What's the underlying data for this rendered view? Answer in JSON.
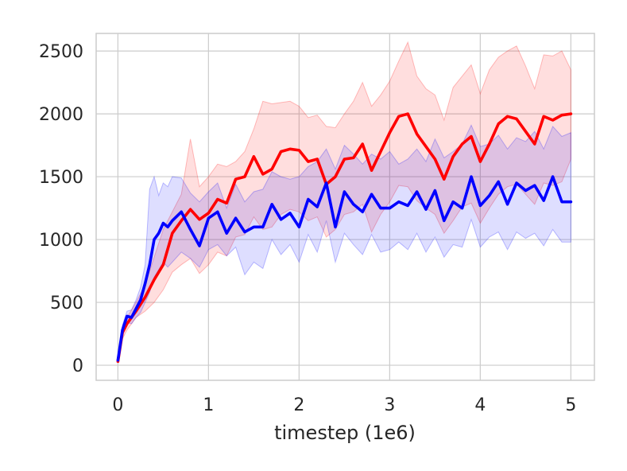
{
  "chart_data": {
    "type": "line",
    "title": "",
    "xlabel": "timestep (1e6)",
    "ylabel": "",
    "xlim": [
      -0.24,
      5.26
    ],
    "ylim": [
      -120,
      2640
    ],
    "x_ticks": [
      0,
      1,
      2,
      3,
      4,
      5
    ],
    "y_ticks": [
      0,
      500,
      1000,
      1500,
      2000,
      2500
    ],
    "grid": true,
    "legend": "none",
    "series": [
      {
        "color": "#ff0000",
        "band_color": "#ff0000",
        "x": [
          0,
          0.05,
          0.1,
          0.2,
          0.3,
          0.4,
          0.5,
          0.6,
          0.7,
          0.8,
          0.9,
          1.0,
          1.1,
          1.2,
          1.3,
          1.4,
          1.5,
          1.6,
          1.7,
          1.8,
          1.9,
          2.0,
          2.1,
          2.2,
          2.3,
          2.4,
          2.5,
          2.6,
          2.7,
          2.8,
          2.9,
          3.0,
          3.1,
          3.2,
          3.3,
          3.4,
          3.5,
          3.6,
          3.7,
          3.8,
          3.9,
          4.0,
          4.1,
          4.2,
          4.3,
          4.4,
          4.5,
          4.6,
          4.7,
          4.8,
          4.9,
          5.0
        ],
        "mean": [
          30,
          260,
          330,
          430,
          540,
          680,
          800,
          1050,
          1150,
          1240,
          1160,
          1210,
          1320,
          1290,
          1480,
          1500,
          1660,
          1520,
          1560,
          1700,
          1720,
          1710,
          1620,
          1640,
          1440,
          1500,
          1640,
          1650,
          1760,
          1550,
          1700,
          1850,
          1980,
          2000,
          1840,
          1740,
          1640,
          1480,
          1660,
          1760,
          1820,
          1620,
          1760,
          1920,
          1980,
          1960,
          1860,
          1760,
          1980,
          1950,
          1990,
          2000
        ],
        "upper": [
          60,
          300,
          380,
          500,
          640,
          860,
          1080,
          1220,
          1360,
          1800,
          1420,
          1500,
          1600,
          1580,
          1620,
          1700,
          1880,
          2100,
          2080,
          2090,
          2100,
          2060,
          1970,
          1990,
          1900,
          1890,
          2000,
          2100,
          2250,
          2060,
          2150,
          2260,
          2420,
          2570,
          2300,
          2200,
          2150,
          1950,
          2210,
          2300,
          2390,
          2160,
          2350,
          2450,
          2500,
          2540,
          2380,
          2200,
          2470,
          2460,
          2500,
          2350
        ],
        "lower": [
          20,
          210,
          280,
          380,
          430,
          500,
          600,
          740,
          800,
          850,
          730,
          800,
          900,
          870,
          1020,
          1040,
          1180,
          1080,
          1100,
          1200,
          1240,
          1220,
          1150,
          1180,
          1020,
          1080,
          1200,
          1220,
          1280,
          1060,
          1200,
          1300,
          1430,
          1420,
          1310,
          1250,
          1200,
          1050,
          1150,
          1260,
          1290,
          1130,
          1250,
          1360,
          1420,
          1440,
          1360,
          1280,
          1450,
          1430,
          1460,
          1640
        ]
      },
      {
        "color": "#0000ff",
        "band_color": "#0000ff",
        "x": [
          0,
          0.05,
          0.1,
          0.15,
          0.2,
          0.25,
          0.3,
          0.35,
          0.4,
          0.45,
          0.5,
          0.55,
          0.6,
          0.7,
          0.8,
          0.9,
          1.0,
          1.1,
          1.2,
          1.3,
          1.4,
          1.5,
          1.6,
          1.7,
          1.8,
          1.9,
          2.0,
          2.1,
          2.2,
          2.3,
          2.4,
          2.5,
          2.6,
          2.7,
          2.8,
          2.9,
          3.0,
          3.1,
          3.2,
          3.3,
          3.4,
          3.5,
          3.6,
          3.7,
          3.8,
          3.9,
          4.0,
          4.1,
          4.2,
          4.3,
          4.4,
          4.5,
          4.6,
          4.7,
          4.8,
          4.9,
          5.0
        ],
        "mean": [
          40,
          280,
          390,
          380,
          450,
          520,
          650,
          800,
          1000,
          1050,
          1130,
          1100,
          1150,
          1220,
          1080,
          950,
          1170,
          1220,
          1050,
          1170,
          1060,
          1100,
          1100,
          1280,
          1160,
          1210,
          1100,
          1320,
          1260,
          1450,
          1100,
          1380,
          1280,
          1220,
          1360,
          1250,
          1250,
          1300,
          1270,
          1380,
          1240,
          1390,
          1150,
          1300,
          1250,
          1500,
          1270,
          1350,
          1460,
          1280,
          1450,
          1390,
          1430,
          1310,
          1500,
          1300,
          1300
        ],
        "upper": [
          70,
          320,
          430,
          440,
          520,
          620,
          800,
          1400,
          1500,
          1350,
          1450,
          1420,
          1500,
          1490,
          1370,
          1300,
          1380,
          1450,
          1250,
          1440,
          1300,
          1380,
          1400,
          1540,
          1500,
          1480,
          1500,
          1580,
          1620,
          1720,
          1560,
          1750,
          1680,
          1600,
          1680,
          1640,
          1700,
          1600,
          1640,
          1720,
          1620,
          1800,
          1650,
          1700,
          1760,
          1910,
          1740,
          1760,
          1830,
          1720,
          1810,
          1780,
          1860,
          1720,
          1900,
          1820,
          1850
        ],
        "lower": [
          20,
          230,
          340,
          330,
          380,
          420,
          500,
          580,
          700,
          760,
          820,
          780,
          820,
          900,
          850,
          780,
          920,
          960,
          870,
          940,
          720,
          820,
          770,
          1000,
          880,
          960,
          820,
          1040,
          900,
          1150,
          820,
          1050,
          960,
          880,
          1040,
          900,
          920,
          980,
          920,
          1050,
          900,
          1020,
          860,
          960,
          940,
          1160,
          940,
          1020,
          1060,
          920,
          1060,
          1010,
          1050,
          950,
          1080,
          980,
          980
        ]
      }
    ]
  }
}
